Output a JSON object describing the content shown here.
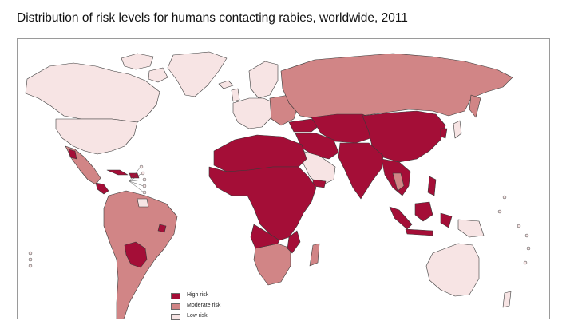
{
  "title": "Distribution of risk levels for humans contacting rabies, worldwide, 2011",
  "colors": {
    "high": "#a40e37",
    "moderate": "#d18586",
    "low": "#f7e4e4",
    "border": "#3a3a3a",
    "frame": "#9a9a9a"
  },
  "legend": [
    {
      "label": "High risk",
      "color": "#a40e37"
    },
    {
      "label": "Moderate risk",
      "color": "#d18586"
    },
    {
      "label": "Low risk",
      "color": "#f7e4e4"
    }
  ]
}
